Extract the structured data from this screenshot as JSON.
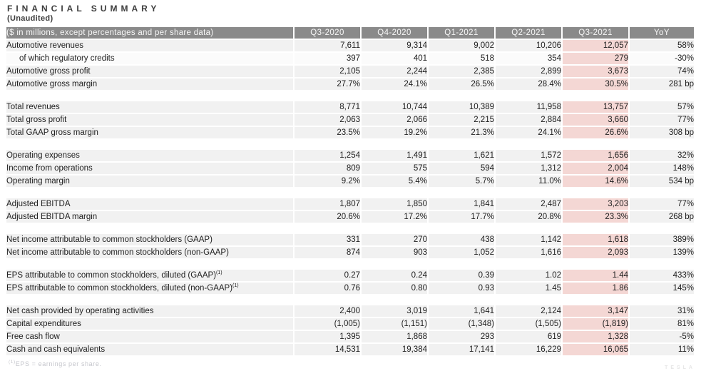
{
  "page": {
    "title": "FINANCIAL SUMMARY",
    "subtitle": "(Unaudited)",
    "footnote_marker": "(1)",
    "footnote_text": "EPS = earnings per share.",
    "watermark": "TESLA"
  },
  "colors": {
    "header_bg": "#8a8a8a",
    "header_text": "#f7f7f7",
    "row_bg": "#f1f1f1",
    "subrow_bg": "#fbfbfb",
    "highlight_bg": "#f4d7d4",
    "text": "#212121",
    "title_text": "#3d3d3d",
    "footnote_text": "#c5c6cc",
    "watermark_text": "#e6e6e6"
  },
  "table": {
    "label_header": "($ in millions, except percentages and per share data)",
    "columns": [
      "Q3-2020",
      "Q4-2020",
      "Q1-2021",
      "Q2-2021",
      "Q3-2021",
      "YoY"
    ],
    "highlight_column": "Q3-2021",
    "highlight_index": 4,
    "groups": [
      {
        "rows": [
          {
            "label": "Automotive revenues",
            "values": [
              "7,611",
              "9,314",
              "9,002",
              "10,206",
              "12,057",
              "58%"
            ]
          },
          {
            "label": "of which regulatory credits",
            "indent": true,
            "subrow": true,
            "values": [
              "397",
              "401",
              "518",
              "354",
              "279",
              "-30%"
            ]
          },
          {
            "label": "Automotive gross profit",
            "values": [
              "2,105",
              "2,244",
              "2,385",
              "2,899",
              "3,673",
              "74%"
            ]
          },
          {
            "label": "Automotive gross margin",
            "values": [
              "27.7%",
              "24.1%",
              "26.5%",
              "28.4%",
              "30.5%",
              "281 bp"
            ]
          }
        ]
      },
      {
        "rows": [
          {
            "label": "Total revenues",
            "values": [
              "8,771",
              "10,744",
              "10,389",
              "11,958",
              "13,757",
              "57%"
            ]
          },
          {
            "label": "Total gross profit",
            "values": [
              "2,063",
              "2,066",
              "2,215",
              "2,884",
              "3,660",
              "77%"
            ]
          },
          {
            "label": "Total GAAP gross margin",
            "values": [
              "23.5%",
              "19.2%",
              "21.3%",
              "24.1%",
              "26.6%",
              "308 bp"
            ]
          }
        ]
      },
      {
        "rows": [
          {
            "label": "Operating expenses",
            "values": [
              "1,254",
              "1,491",
              "1,621",
              "1,572",
              "1,656",
              "32%"
            ]
          },
          {
            "label": "Income from operations",
            "values": [
              "809",
              "575",
              "594",
              "1,312",
              "2,004",
              "148%"
            ]
          },
          {
            "label": "Operating margin",
            "values": [
              "9.2%",
              "5.4%",
              "5.7%",
              "11.0%",
              "14.6%",
              "534 bp"
            ]
          }
        ]
      },
      {
        "rows": [
          {
            "label": "Adjusted EBITDA",
            "values": [
              "1,807",
              "1,850",
              "1,841",
              "2,487",
              "3,203",
              "77%"
            ]
          },
          {
            "label": "Adjusted EBITDA margin",
            "values": [
              "20.6%",
              "17.2%",
              "17.7%",
              "20.8%",
              "23.3%",
              "268 bp"
            ]
          }
        ]
      },
      {
        "rows": [
          {
            "label": "Net income attributable to common stockholders (GAAP)",
            "values": [
              "331",
              "270",
              "438",
              "1,142",
              "1,618",
              "389%"
            ]
          },
          {
            "label": "Net income attributable to common stockholders (non-GAAP)",
            "values": [
              "874",
              "903",
              "1,052",
              "1,616",
              "2,093",
              "139%"
            ]
          }
        ]
      },
      {
        "rows": [
          {
            "label": "EPS attributable to common stockholders, diluted (GAAP)",
            "sup": "(1)",
            "values": [
              "0.27",
              "0.24",
              "0.39",
              "1.02",
              "1.44",
              "433%"
            ]
          },
          {
            "label": "EPS attributable to common stockholders, diluted (non-GAAP)",
            "sup": "(1)",
            "values": [
              "0.76",
              "0.80",
              "0.93",
              "1.45",
              "1.86",
              "145%"
            ]
          }
        ]
      },
      {
        "rows": [
          {
            "label": "Net cash provided by operating activities",
            "values": [
              "2,400",
              "3,019",
              "1,641",
              "2,124",
              "3,147",
              "31%"
            ]
          },
          {
            "label": "Capital expenditures",
            "values": [
              "(1,005)",
              "(1,151)",
              "(1,348)",
              "(1,505)",
              "(1,819)",
              "81%"
            ]
          },
          {
            "label": "Free cash flow",
            "values": [
              "1,395",
              "1,868",
              "293",
              "619",
              "1,328",
              "-5%"
            ]
          },
          {
            "label": "Cash and cash equivalents",
            "values": [
              "14,531",
              "19,384",
              "17,141",
              "16,229",
              "16,065",
              "11%"
            ]
          }
        ]
      }
    ]
  }
}
